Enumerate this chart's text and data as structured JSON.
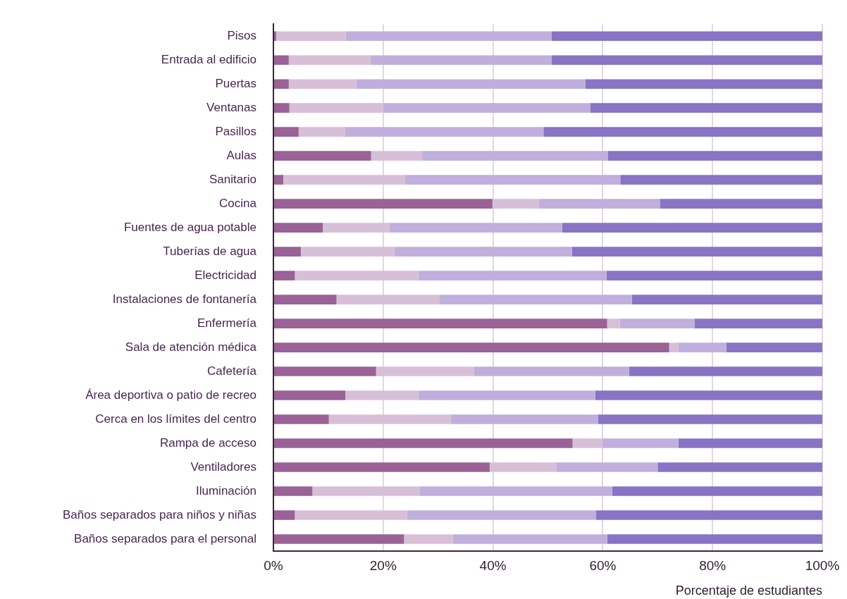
{
  "chart_data": {
    "type": "bar",
    "orientation": "horizontal",
    "stacked": true,
    "xlabel": "Porcentaje de estudiantes",
    "categories": [
      "Pisos",
      "Entrada al edificio",
      "Puertas",
      "Ventanas",
      "Pasillos",
      "Aulas",
      "Sanitario",
      "Cocina",
      "Fuentes de agua potable",
      "Tuberías de agua",
      "Electricidad",
      "Instalaciones de fontanería",
      "Enfermería",
      "Sala de atención médica",
      "Cafetería",
      "Área deportiva o patio de recreo",
      "Cerca en los límites del centro",
      "Rampa de acceso",
      "Ventiladores",
      "Iluminación",
      "Baños separados para niños y niñas",
      "Baños separados para el personal"
    ],
    "series": [
      {
        "color": "#9a6296",
        "values": [
          0.5,
          2.8,
          2.8,
          2.9,
          4.6,
          17.8,
          1.8,
          39.9,
          9.0,
          5.0,
          3.9,
          11.5,
          60.8,
          72.1,
          18.7,
          13.1,
          10.1,
          54.5,
          39.4,
          7.1,
          3.9,
          23.8
        ]
      },
      {
        "color": "#d7c0d7",
        "values": [
          12.7,
          14.9,
          12.3,
          17.1,
          8.4,
          9.3,
          22.2,
          8.5,
          12.1,
          17.0,
          22.5,
          18.8,
          2.3,
          1.7,
          17.8,
          13.3,
          22.2,
          5.4,
          12.1,
          19.6,
          20.5,
          8.9
        ]
      },
      {
        "color": "#c0afdc",
        "values": [
          37.5,
          33.0,
          41.7,
          37.7,
          36.2,
          33.8,
          39.2,
          22.0,
          31.5,
          32.4,
          34.3,
          35.0,
          13.6,
          8.7,
          28.3,
          32.2,
          26.8,
          13.9,
          18.5,
          35.0,
          34.4,
          28.1
        ]
      },
      {
        "color": "#8874c4",
        "values": [
          49.3,
          49.3,
          43.2,
          42.3,
          50.8,
          39.1,
          36.8,
          29.6,
          47.4,
          45.6,
          39.3,
          34.7,
          23.3,
          17.5,
          35.2,
          41.4,
          40.9,
          26.2,
          30.0,
          38.3,
          41.2,
          39.2
        ]
      }
    ],
    "xlim": [
      0,
      100
    ],
    "xticks": [
      {
        "value": 0,
        "label": "0%"
      },
      {
        "value": 20,
        "label": "20%"
      },
      {
        "value": 40,
        "label": "40%"
      },
      {
        "value": 60,
        "label": "60%"
      },
      {
        "value": 80,
        "label": "80%"
      },
      {
        "value": 100,
        "label": "100%"
      }
    ],
    "grid": "x"
  }
}
